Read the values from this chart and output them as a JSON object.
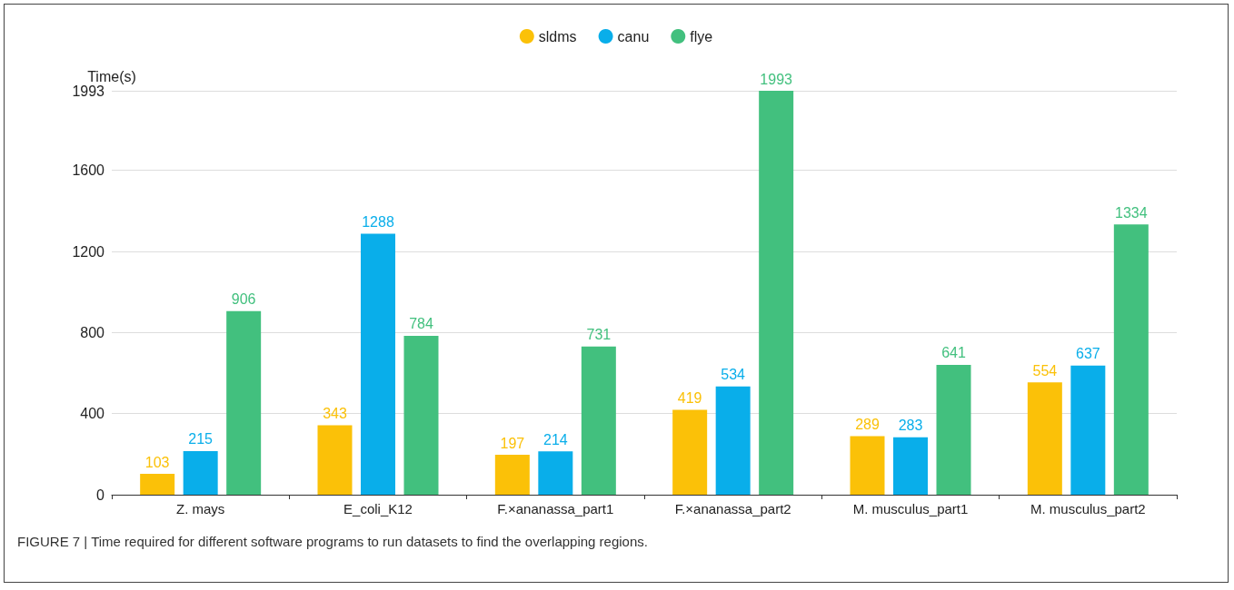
{
  "chart_data": {
    "type": "bar",
    "ylabel": "Time(s)",
    "categories": [
      "Z. mays",
      "E_coli_K12",
      "F.×ananassa_part1",
      "F.×ananassa_part2",
      "M. musculus_part1",
      "M. musculus_part2"
    ],
    "series": [
      {
        "name": "sldms",
        "color": "#fbc108",
        "values": [
          103,
          343,
          197,
          419,
          289,
          554
        ]
      },
      {
        "name": "canu",
        "color": "#09aeea",
        "values": [
          215,
          1288,
          214,
          534,
          283,
          637
        ]
      },
      {
        "name": "flye",
        "color": "#42c07e",
        "values": [
          906,
          784,
          731,
          1993,
          641,
          1334
        ]
      }
    ],
    "ylim": [
      0,
      1993
    ],
    "yticks": [
      0,
      400,
      800,
      1200,
      1600,
      1993
    ],
    "grid": "y",
    "legend": "top",
    "data_labels": true,
    "annotations": [
      "FIGURE 7 | Time required for different software programs to run datasets to find the overlapping regions."
    ]
  }
}
